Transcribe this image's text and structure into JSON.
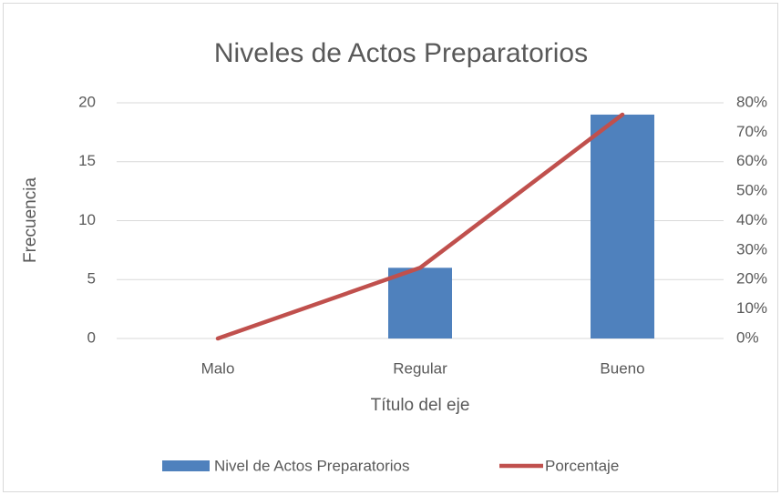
{
  "chart_data": {
    "type": "combo",
    "title": "Niveles de Actos Preparatorios",
    "categories": [
      "Malo",
      "Regular",
      "Bueno"
    ],
    "series": [
      {
        "name": "Nivel de Actos Preparatorios",
        "type": "bar",
        "color": "#4f81bd",
        "values": [
          0,
          6,
          19
        ]
      },
      {
        "name": "Porcentaje",
        "type": "line",
        "axis": "y2",
        "color": "#c0504d",
        "values": [
          0,
          24,
          76
        ]
      }
    ],
    "ylabel": "Frecuencia",
    "xlabel": "Título del eje",
    "ylim": [
      0,
      20
    ],
    "yticks": [
      0,
      5,
      10,
      15,
      20
    ],
    "y2lim": [
      0,
      80
    ],
    "y2ticks": [
      {
        "value": 0,
        "label": "0%"
      },
      {
        "value": 10,
        "label": "10%"
      },
      {
        "value": 20,
        "label": "20%"
      },
      {
        "value": 30,
        "label": "30%"
      },
      {
        "value": 40,
        "label": "40%"
      },
      {
        "value": 50,
        "label": "50%"
      },
      {
        "value": 60,
        "label": "60%"
      },
      {
        "value": 70,
        "label": "70%"
      },
      {
        "value": 80,
        "label": "80%"
      }
    ],
    "grid": true,
    "legend": "bottom"
  }
}
